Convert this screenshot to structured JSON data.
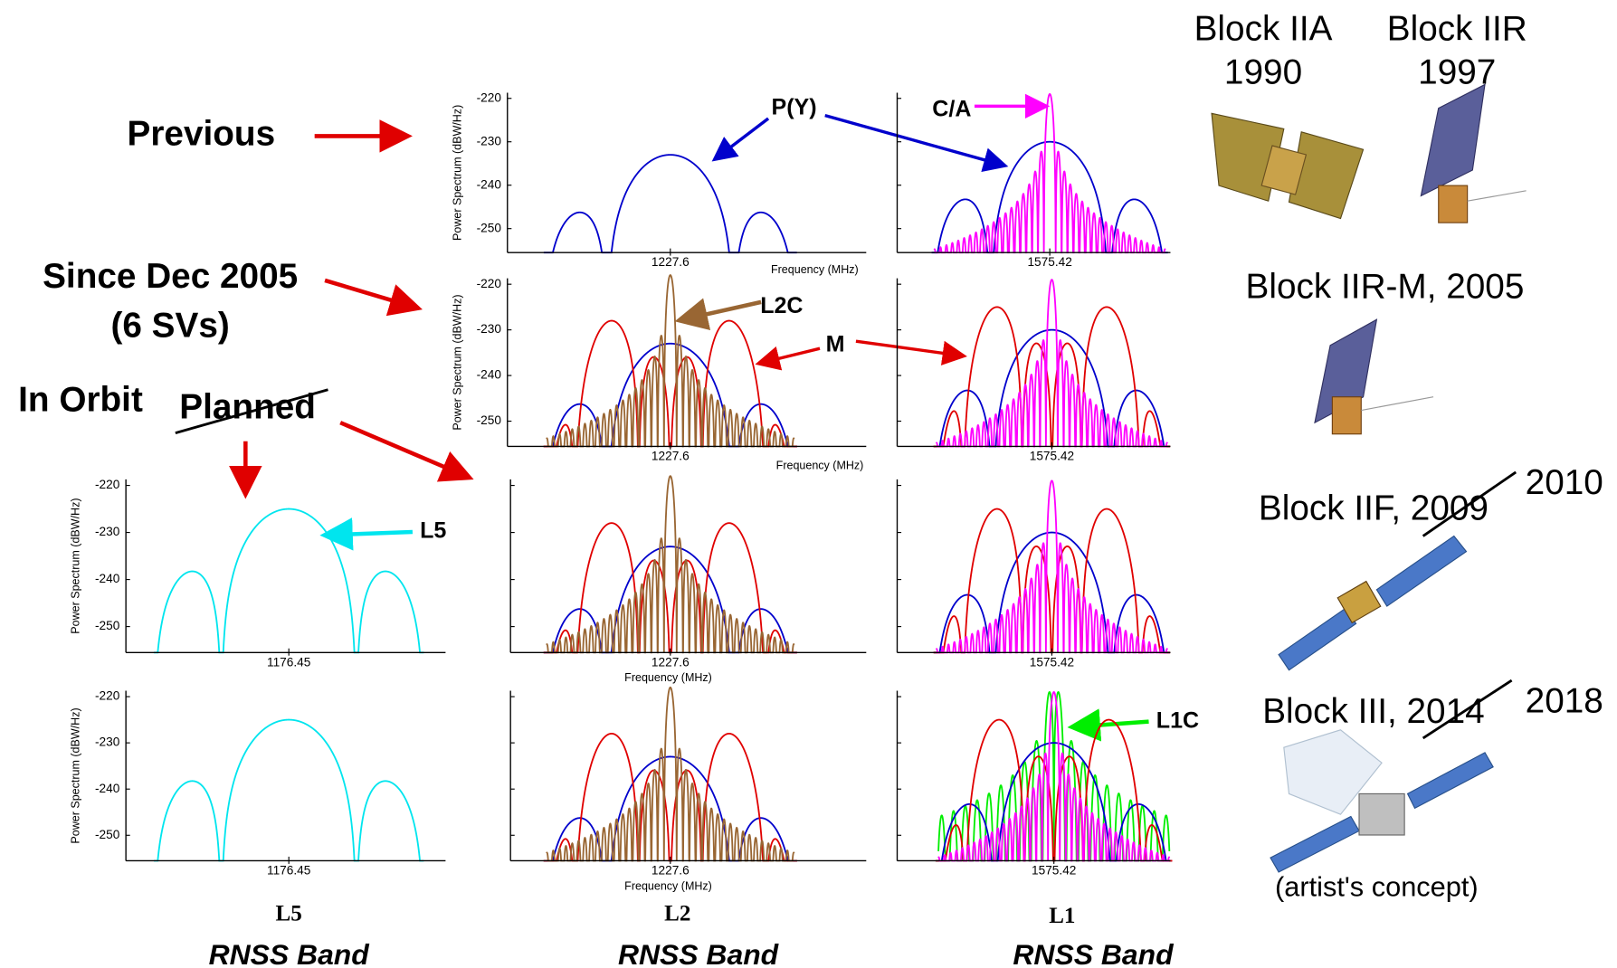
{
  "row_labels": {
    "previous": "Previous",
    "since": "Since Dec 2005",
    "svs": "(6 SVs)",
    "in_orbit": "In Orbit",
    "planned": "Planned"
  },
  "signals": {
    "py": "P(Y)",
    "ca": "C/A",
    "l2c": "L2C",
    "m": "M",
    "l5": "L5",
    "l1c": "L1C"
  },
  "axis": {
    "y_label": "Power Spectrum (dBW/Hz)",
    "x_label": "Frequency (MHz)",
    "y_ticks": [
      "-220",
      "-230",
      "-240",
      "-250"
    ]
  },
  "bands": [
    {
      "name": "L5",
      "center": "1176.45",
      "caption": "RNSS Band"
    },
    {
      "name": "L2",
      "center": "1227.6",
      "caption": "RNSS Band"
    },
    {
      "name": "L1",
      "center": "1575.42",
      "caption": "RNSS Band"
    }
  ],
  "satellites": [
    {
      "name": "Block IIA",
      "year": "1990"
    },
    {
      "name": "Block IIR",
      "year": "1997"
    },
    {
      "label": "Block IIR-M, 2005"
    },
    {
      "label": "Block IIF, 2009",
      "revised": "2010"
    },
    {
      "label": "Block III, 2014",
      "revised": "2018"
    },
    {
      "caption": "(artist's concept)"
    }
  ]
}
